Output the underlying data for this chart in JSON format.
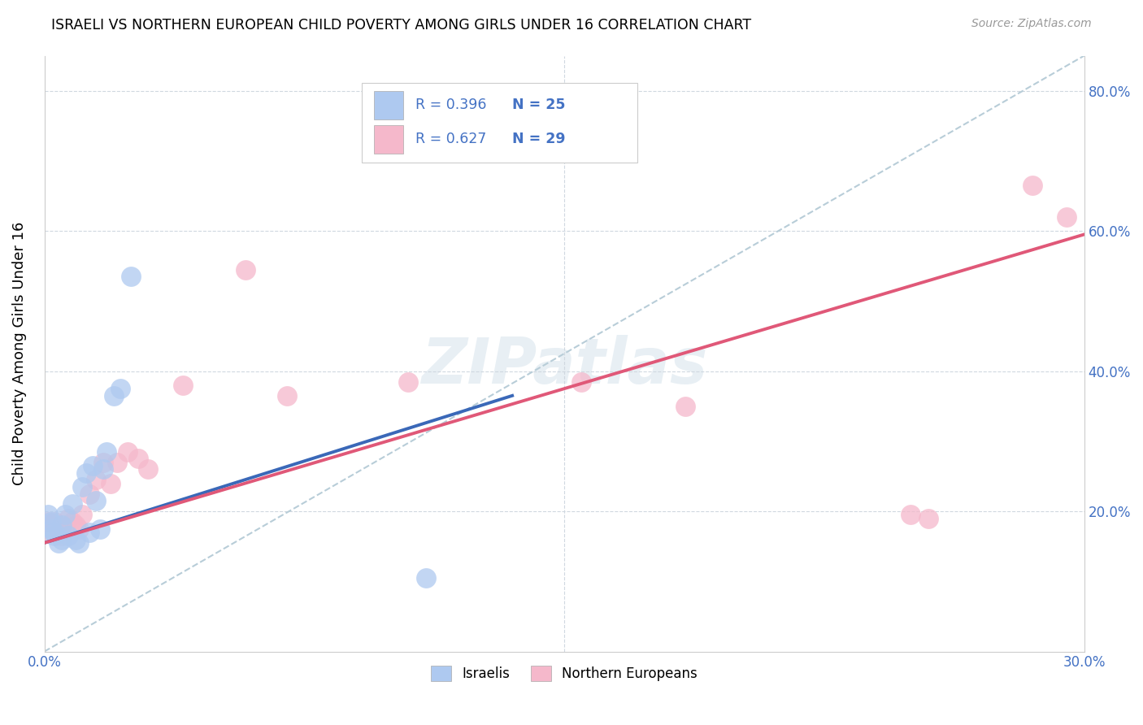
{
  "title": "ISRAELI VS NORTHERN EUROPEAN CHILD POVERTY AMONG GIRLS UNDER 16 CORRELATION CHART",
  "source": "Source: ZipAtlas.com",
  "ylabel": "Child Poverty Among Girls Under 16",
  "xlim": [
    0.0,
    0.3
  ],
  "ylim": [
    0.0,
    0.85
  ],
  "xtick_positions": [
    0.0,
    0.05,
    0.1,
    0.15,
    0.2,
    0.25,
    0.3
  ],
  "xtick_labels": [
    "0.0%",
    "",
    "",
    "",
    "",
    "",
    "30.0%"
  ],
  "ytick_positions": [
    0.0,
    0.2,
    0.4,
    0.6,
    0.8
  ],
  "ytick_labels": [
    "",
    "20.0%",
    "40.0%",
    "60.0%",
    "80.0%"
  ],
  "watermark": "ZIPatlas",
  "legend_r1": "R = 0.396",
  "legend_n1": "N = 25",
  "legend_r2": "R = 0.627",
  "legend_n2": "N = 29",
  "color_israelis": "#aec9f0",
  "color_ne": "#f5b8cb",
  "color_line_israelis": "#3a68b8",
  "color_line_ne": "#e05878",
  "color_diagonal": "#b8cdd8",
  "label_israelis": "Israelis",
  "label_ne": "Northern Europeans",
  "isr_line": [
    [
      0.0,
      0.155
    ],
    [
      0.135,
      0.365
    ]
  ],
  "ne_line": [
    [
      0.0,
      0.155
    ],
    [
      0.3,
      0.595
    ]
  ],
  "diag_line": [
    [
      0.0,
      0.0
    ],
    [
      0.3,
      0.85
    ]
  ],
  "israelis_x": [
    0.001,
    0.002,
    0.002,
    0.003,
    0.003,
    0.004,
    0.005,
    0.005,
    0.006,
    0.007,
    0.008,
    0.009,
    0.01,
    0.011,
    0.012,
    0.013,
    0.014,
    0.015,
    0.016,
    0.017,
    0.018,
    0.02,
    0.022,
    0.025,
    0.11
  ],
  "israelis_y": [
    0.195,
    0.185,
    0.175,
    0.165,
    0.17,
    0.155,
    0.16,
    0.18,
    0.195,
    0.165,
    0.21,
    0.16,
    0.155,
    0.235,
    0.255,
    0.17,
    0.265,
    0.215,
    0.175,
    0.26,
    0.285,
    0.365,
    0.375,
    0.535,
    0.105
  ],
  "ne_x": [
    0.001,
    0.002,
    0.003,
    0.004,
    0.005,
    0.006,
    0.007,
    0.008,
    0.009,
    0.01,
    0.011,
    0.013,
    0.015,
    0.017,
    0.019,
    0.021,
    0.024,
    0.027,
    0.03,
    0.04,
    0.058,
    0.07,
    0.105,
    0.155,
    0.185,
    0.25,
    0.255,
    0.285,
    0.295
  ],
  "ne_y": [
    0.185,
    0.17,
    0.185,
    0.175,
    0.165,
    0.175,
    0.19,
    0.185,
    0.18,
    0.175,
    0.195,
    0.225,
    0.245,
    0.27,
    0.24,
    0.27,
    0.285,
    0.275,
    0.26,
    0.38,
    0.545,
    0.365,
    0.385,
    0.385,
    0.35,
    0.195,
    0.19,
    0.665,
    0.62
  ]
}
